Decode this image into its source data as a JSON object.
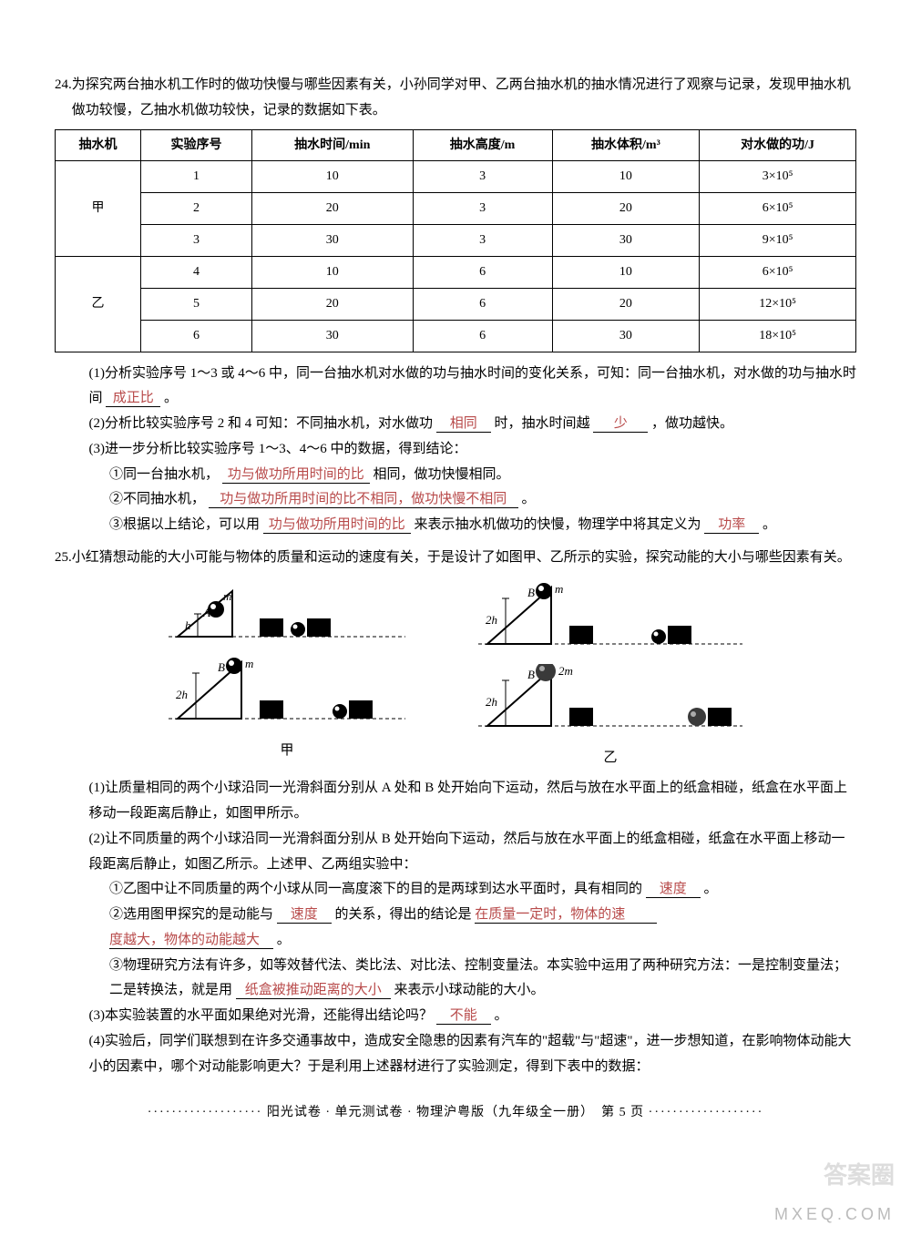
{
  "q24": {
    "num": "24.",
    "intro": "为探究两台抽水机工作时的做功快慢与哪些因素有关，小孙同学对甲、乙两台抽水机的抽水情况进行了观察与记录，发现甲抽水机做功较慢，乙抽水机做功较快，记录的数据如下表。",
    "table": {
      "headers": [
        "抽水机",
        "实验序号",
        "抽水时间/min",
        "抽水高度/m",
        "抽水体积/m³",
        "对水做的功/J"
      ],
      "groups": [
        {
          "name": "甲",
          "rows": [
            [
              "1",
              "10",
              "3",
              "10",
              "3×10⁵"
            ],
            [
              "2",
              "20",
              "3",
              "20",
              "6×10⁵"
            ],
            [
              "3",
              "30",
              "3",
              "30",
              "9×10⁵"
            ]
          ]
        },
        {
          "name": "乙",
          "rows": [
            [
              "4",
              "10",
              "6",
              "10",
              "6×10⁵"
            ],
            [
              "5",
              "20",
              "6",
              "20",
              "12×10⁵"
            ],
            [
              "6",
              "30",
              "6",
              "30",
              "18×10⁵"
            ]
          ]
        }
      ]
    },
    "p1": {
      "text_a": "(1)分析实验序号 1～3 或 4～6 中，同一台抽水机对水做的功与抽水时间的变化关系，可知：同一台抽水机，对水做的功与抽水时间",
      "blank": "成正比",
      "text_b": "。"
    },
    "p2": {
      "text_a": "(2)分析比较实验序号 2 和 4 可知：不同抽水机，对水做功",
      "blank1": "相同",
      "text_b": "时，抽水时间越",
      "blank2": "少",
      "text_c": "，做功越快。"
    },
    "p3": {
      "lead": "(3)进一步分析比较实验序号 1～3、4～6 中的数据，得到结论：",
      "i1_a": "①同一台抽水机，",
      "i1_blank": "功与做功所用时间的比",
      "i1_b": "相同，做功快慢相同。",
      "i2_a": "②不同抽水机，",
      "i2_blank": "功与做功所用时间的比不相同，做功快慢不相同",
      "i2_b": "。",
      "i3_a": "③根据以上结论，可以用",
      "i3_blank1": "功与做功所用时间的比",
      "i3_b": "来表示抽水机做功的快慢，物理学中将其定义为",
      "i3_blank2": "功率",
      "i3_c": "。"
    }
  },
  "q25": {
    "num": "25.",
    "intro": "小红猜想动能的大小可能与物体的质量和运动的速度有关，于是设计了如图甲、乙所示的实验，探究动能的大小与哪些因素有关。",
    "fig_labels": {
      "a": "甲",
      "b": "乙"
    },
    "fig_annot": {
      "m": "m",
      "2m": "2m",
      "h": "h",
      "2h": "2h",
      "A": "A",
      "B": "B"
    },
    "p1": "(1)让质量相同的两个小球沿同一光滑斜面分别从 A 处和 B 处开始向下运动，然后与放在水平面上的纸盒相碰，纸盒在水平面上移动一段距离后静止，如图甲所示。",
    "p2": {
      "lead": "(2)让不同质量的两个小球沿同一光滑斜面分别从 B 处开始向下运动，然后与放在水平面上的纸盒相碰，纸盒在水平面上移动一段距离后静止，如图乙所示。上述甲、乙两组实验中：",
      "i1_a": "①乙图中让不同质量的两个小球从同一高度滚下的目的是两球到达水平面时，具有相同的",
      "i1_blank": "速度",
      "i1_b": "。",
      "i2_a": "②选用图甲探究的是动能与",
      "i2_blank1": "速度",
      "i2_b": "的关系，得出的结论是",
      "i2_blank2a": "在质量一定时，物体的速",
      "i2_blank2b": "度越大，物体的动能越大",
      "i2_c": "。",
      "i3_a": "③物理研究方法有许多，如等效替代法、类比法、对比法、控制变量法。本实验中运用了两种研究方法：一是控制变量法；二是转换法，就是用",
      "i3_blank": "纸盒被推动距离的大小",
      "i3_b": "来表示小球动能的大小。"
    },
    "p3": {
      "a": "(3)本实验装置的水平面如果绝对光滑，还能得出结论吗？",
      "blank": "不能",
      "b": "。"
    },
    "p4": "(4)实验后，同学们联想到在许多交通事故中，造成安全隐患的因素有汽车的\"超载\"与\"超速\"，进一步想知道，在影响物体动能大小的因素中，哪个对动能影响更大？于是利用上述器材进行了实验测定，得到下表中的数据："
  },
  "footer": {
    "text": "阳光试卷 · 单元测试卷 · 物理沪粤版（九年级全一册）　第 5 页"
  },
  "watermark": {
    "a": "答案圈",
    "b": "MXEQ.COM"
  },
  "colors": {
    "answer": "#b84a4a"
  },
  "svg": {
    "ramp_stroke": "#000",
    "ramp_fill": "#000",
    "ball_fill": "#000",
    "ball_shine": "#fff",
    "box_fill": "#000",
    "ground_dash": "4 3"
  }
}
